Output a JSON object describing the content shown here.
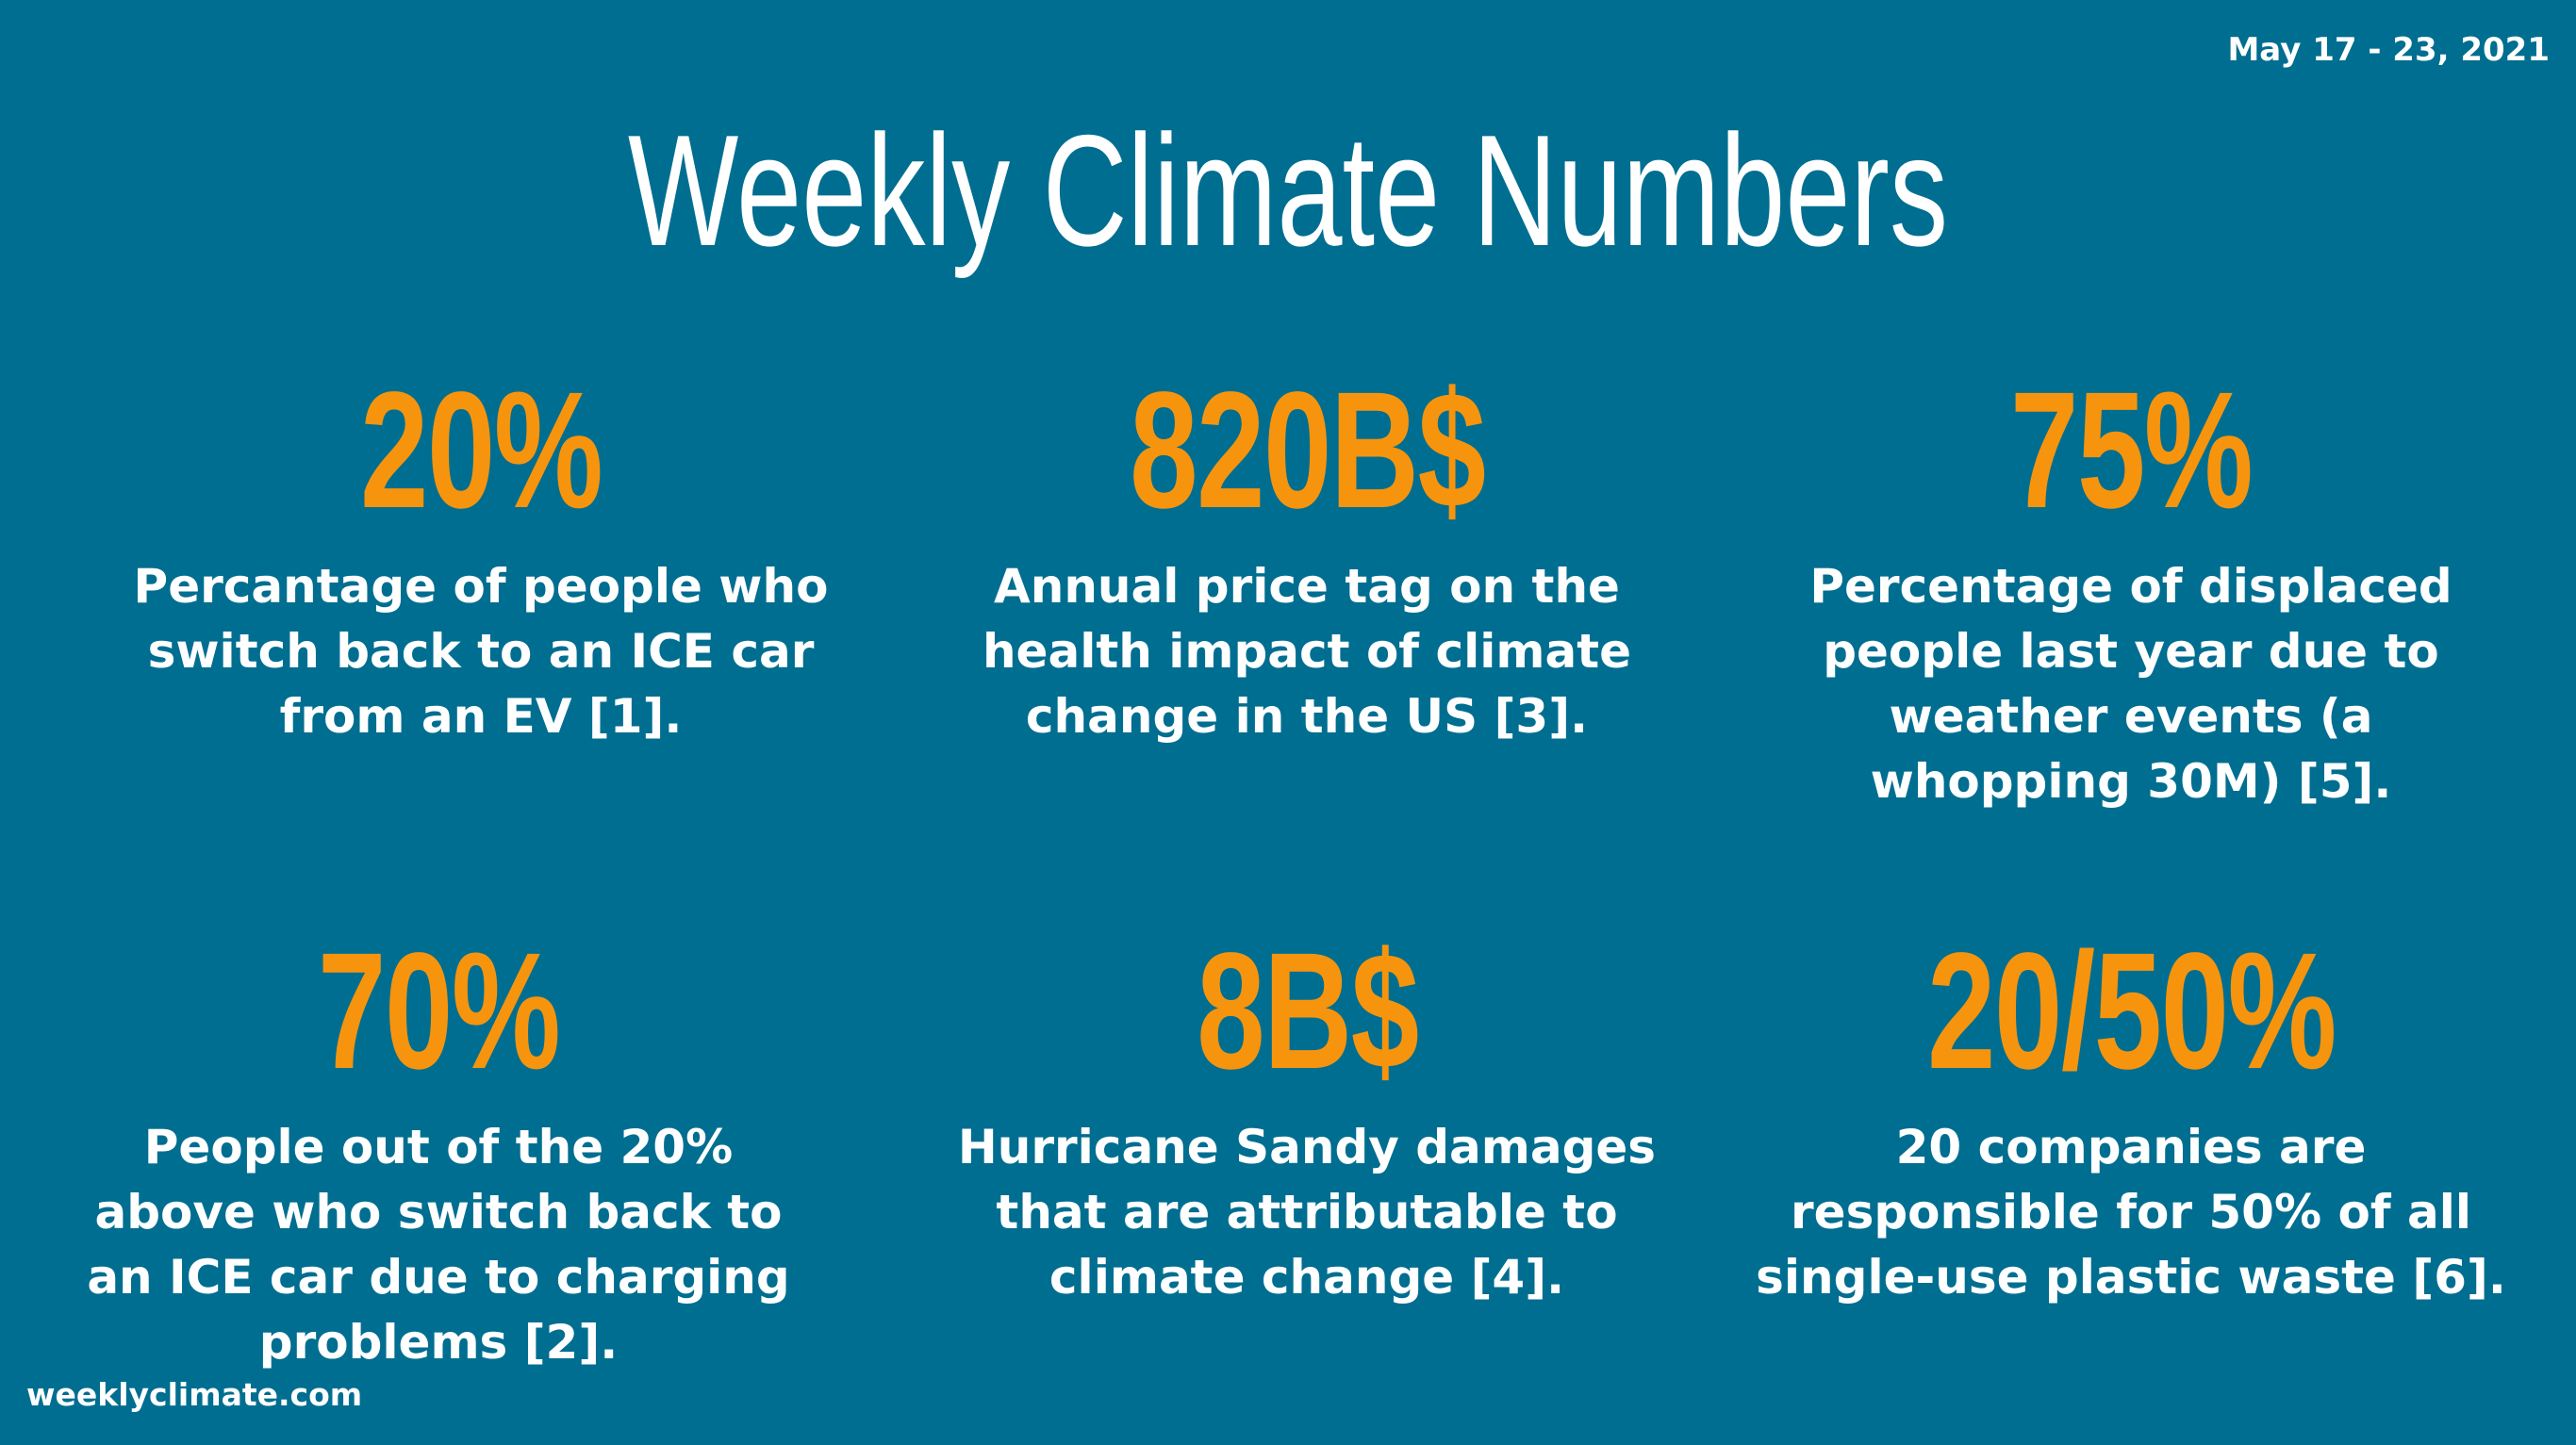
{
  "header": {
    "date_range": "May 17 - 23, 2021",
    "title": "Weekly Climate Numbers"
  },
  "stats": [
    {
      "value": "20%",
      "description": "Percantage of people who switch back to an ICE car from an EV [1]."
    },
    {
      "value": "820B$",
      "description": "Annual price tag on the health impact of climate change in the US [3]."
    },
    {
      "value": "75%",
      "description": "Percentage of displaced people last year due to weather events (a whopping 30M) [5]."
    },
    {
      "value": "70%",
      "description": "People out of the 20% above who switch back to an ICE car due to charging problems [2]."
    },
    {
      "value": "8B$",
      "description": "Hurricane Sandy damages that are attributable to climate change [4]."
    },
    {
      "value": "20/50%",
      "description": "20 companies are responsible for 50% of all single-use plastic waste [6]."
    }
  ],
  "footer": {
    "site": "weeklyclimate.com"
  },
  "colors": {
    "background": "#006e90",
    "accent": "#f7940d",
    "text": "#ffffff"
  }
}
